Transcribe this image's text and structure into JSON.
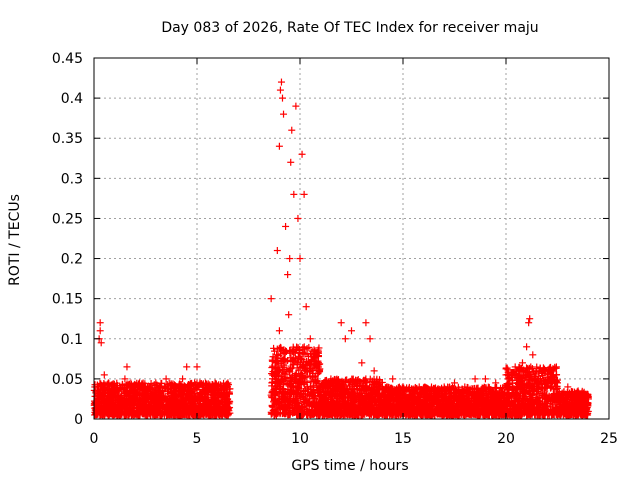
{
  "chart_data": {
    "type": "scatter",
    "title": "Day 083 of 2026, Rate Of TEC Index for receiver maju",
    "xlabel": "GPS time / hours",
    "ylabel": "ROTI / TECUs",
    "xlim": [
      0,
      25
    ],
    "ylim": [
      0,
      0.45
    ],
    "grid": true,
    "marker": "+",
    "series_color": "#ff0000",
    "x_ticks": [
      "0",
      "5",
      "10",
      "15",
      "20",
      "25"
    ],
    "y_ticks": [
      "0",
      "0.05",
      "0.1",
      "0.15",
      "0.2",
      "0.25",
      "0.3",
      "0.35",
      "0.4",
      "0.45"
    ],
    "data_gap_hours": [
      6.6,
      8.6
    ],
    "series": [
      {
        "name": "ROTI",
        "points": [
          [
            0.1,
            0.02
          ],
          [
            0.2,
            0.015
          ],
          [
            0.25,
            0.1
          ],
          [
            0.3,
            0.11
          ],
          [
            0.3,
            0.12
          ],
          [
            0.35,
            0.095
          ],
          [
            0.5,
            0.055
          ],
          [
            0.7,
            0.045
          ],
          [
            1.0,
            0.035
          ],
          [
            1.5,
            0.05
          ],
          [
            1.6,
            0.065
          ],
          [
            2.0,
            0.04
          ],
          [
            2.5,
            0.035
          ],
          [
            3.0,
            0.045
          ],
          [
            3.5,
            0.05
          ],
          [
            4.0,
            0.04
          ],
          [
            4.3,
            0.05
          ],
          [
            4.5,
            0.065
          ],
          [
            5.0,
            0.065
          ],
          [
            5.0,
            0.045
          ],
          [
            5.5,
            0.035
          ],
          [
            6.0,
            0.03
          ],
          [
            6.5,
            0.045
          ],
          [
            8.6,
            0.15
          ],
          [
            8.8,
            0.07
          ],
          [
            8.9,
            0.21
          ],
          [
            9.0,
            0.11
          ],
          [
            9.0,
            0.34
          ],
          [
            9.05,
            0.41
          ],
          [
            9.1,
            0.42
          ],
          [
            9.15,
            0.4
          ],
          [
            9.2,
            0.38
          ],
          [
            9.3,
            0.24
          ],
          [
            9.4,
            0.18
          ],
          [
            9.45,
            0.13
          ],
          [
            9.5,
            0.2
          ],
          [
            9.55,
            0.32
          ],
          [
            9.6,
            0.36
          ],
          [
            9.7,
            0.28
          ],
          [
            9.8,
            0.39
          ],
          [
            9.9,
            0.25
          ],
          [
            10.0,
            0.2
          ],
          [
            10.1,
            0.33
          ],
          [
            10.2,
            0.28
          ],
          [
            10.3,
            0.14
          ],
          [
            10.5,
            0.1
          ],
          [
            10.8,
            0.08
          ],
          [
            11.0,
            0.04
          ],
          [
            11.5,
            0.05
          ],
          [
            12.0,
            0.12
          ],
          [
            12.2,
            0.1
          ],
          [
            12.5,
            0.11
          ],
          [
            13.0,
            0.07
          ],
          [
            13.2,
            0.12
          ],
          [
            13.4,
            0.1
          ],
          [
            13.6,
            0.06
          ],
          [
            14.0,
            0.04
          ],
          [
            14.5,
            0.05
          ],
          [
            15.0,
            0.04
          ],
          [
            15.5,
            0.035
          ],
          [
            16.0,
            0.03
          ],
          [
            16.5,
            0.035
          ],
          [
            17.0,
            0.04
          ],
          [
            17.5,
            0.045
          ],
          [
            18.0,
            0.04
          ],
          [
            18.5,
            0.05
          ],
          [
            19.0,
            0.05
          ],
          [
            19.5,
            0.045
          ],
          [
            20.0,
            0.055
          ],
          [
            20.5,
            0.06
          ],
          [
            20.8,
            0.07
          ],
          [
            21.0,
            0.09
          ],
          [
            21.1,
            0.12
          ],
          [
            21.15,
            0.125
          ],
          [
            21.3,
            0.08
          ],
          [
            21.5,
            0.06
          ],
          [
            22.0,
            0.05
          ],
          [
            22.5,
            0.045
          ],
          [
            23.0,
            0.04
          ],
          [
            23.5,
            0.035
          ],
          [
            24.0,
            0.025
          ]
        ]
      }
    ],
    "dense_bands": [
      {
        "x_start": 0.0,
        "x_end": 6.6,
        "y_low": 0.005,
        "y_high": 0.045
      },
      {
        "x_start": 8.6,
        "x_end": 11.0,
        "y_low": 0.005,
        "y_high": 0.09
      },
      {
        "x_start": 11.0,
        "x_end": 14.0,
        "y_low": 0.005,
        "y_high": 0.05
      },
      {
        "x_start": 14.0,
        "x_end": 20.0,
        "y_low": 0.005,
        "y_high": 0.04
      },
      {
        "x_start": 20.0,
        "x_end": 22.5,
        "y_low": 0.005,
        "y_high": 0.065
      },
      {
        "x_start": 22.5,
        "x_end": 24.0,
        "y_low": 0.005,
        "y_high": 0.035
      }
    ]
  }
}
